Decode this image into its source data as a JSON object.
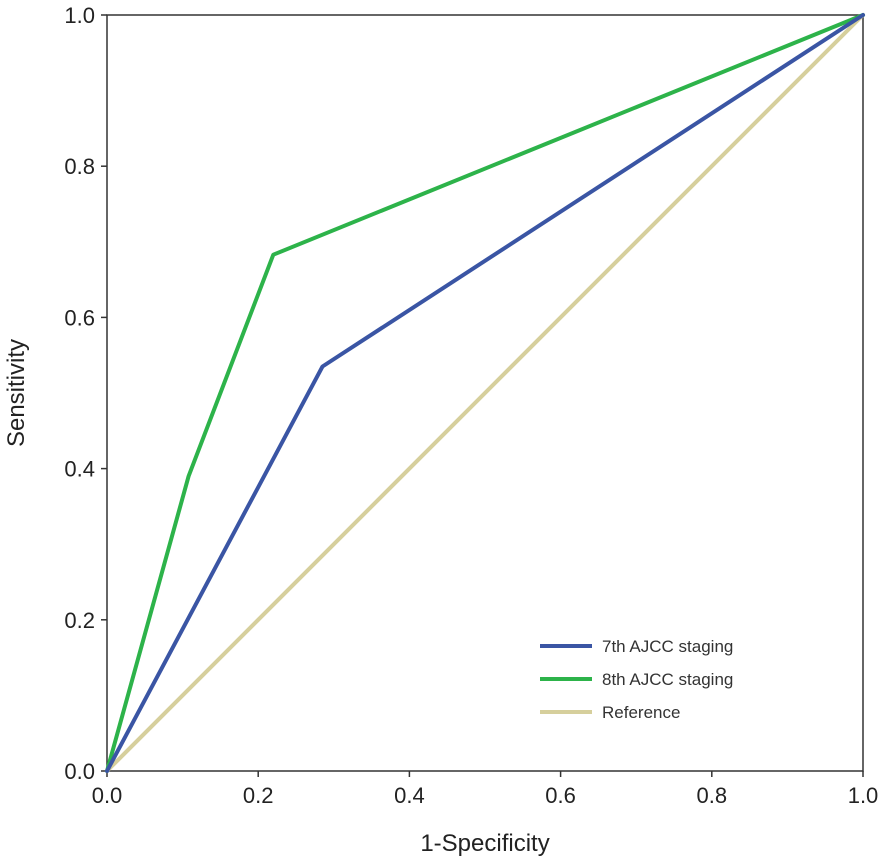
{
  "chart_data": {
    "type": "line",
    "title": "",
    "xlabel": "1-Specificity",
    "ylabel": "Sensitivity",
    "xlim": [
      0,
      1
    ],
    "ylim": [
      0,
      1
    ],
    "x_ticks": [
      "0.0",
      "0.2",
      "0.4",
      "0.6",
      "0.8",
      "1.0"
    ],
    "y_ticks": [
      "0.0",
      "0.2",
      "0.4",
      "0.6",
      "0.8",
      "1.0"
    ],
    "grid": false,
    "legend_position": "bottom-right",
    "series": [
      {
        "name": "7th AJCC staging",
        "color": "#3a55a4",
        "points": [
          [
            0,
            0
          ],
          [
            0.285,
            0.535
          ],
          [
            1,
            1
          ]
        ]
      },
      {
        "name": "8th AJCC staging",
        "color": "#2db34a",
        "points": [
          [
            0,
            0
          ],
          [
            0.108,
            0.39
          ],
          [
            0.22,
            0.683
          ],
          [
            1,
            1
          ]
        ]
      },
      {
        "name": "Reference",
        "color": "#d6cf9c",
        "points": [
          [
            0,
            0
          ],
          [
            1,
            1
          ]
        ]
      }
    ]
  }
}
